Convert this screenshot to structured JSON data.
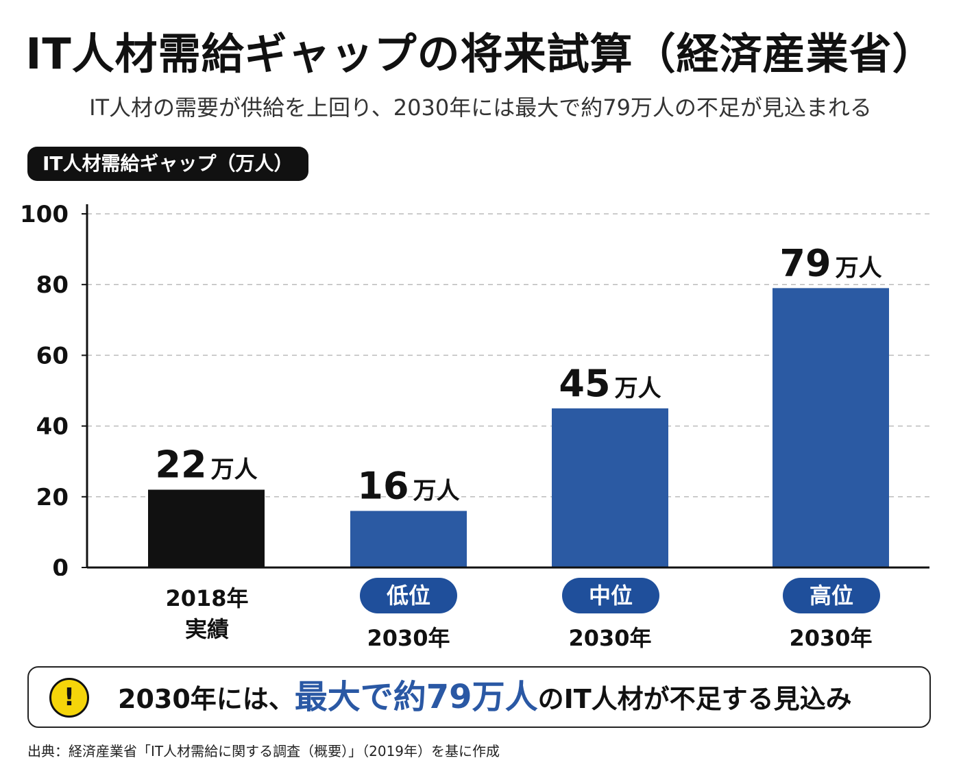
{
  "header": {
    "title": "IT人材需給ギャップの将来試算（経済産業省）",
    "subtitle": "IT人材の需要が供給を上回り、2030年には最大で約79万人の不足が見込まれる",
    "axis_pill": "IT人材需給ギャップ（万人）"
  },
  "colors": {
    "actual_bar": "#111111",
    "forecast_bar": "#2b5aa3",
    "bubble": "#1f4f9b",
    "highlight_text": "#2a58a4",
    "grid": "#bbbbbb",
    "warning": "#f5d50a"
  },
  "icons": {
    "warning": "exclamation-circle-icon"
  },
  "chart_data": {
    "type": "bar",
    "ylim": [
      0,
      100
    ],
    "yticks": [
      "0",
      "20",
      "40",
      "60",
      "80",
      "100"
    ],
    "grid": "horizontal-dashed",
    "unit_suffix": "万人",
    "values": [
      22,
      16,
      45,
      79
    ],
    "value_labels": [
      "22",
      "16",
      "45",
      "79"
    ],
    "categories": [
      {
        "badge": "",
        "line1": "2018年",
        "line2": "実績",
        "color": "#111111"
      },
      {
        "badge": "低位",
        "line1": "2030年",
        "line2": "",
        "color": "#2b5aa3"
      },
      {
        "badge": "中位",
        "line1": "2030年",
        "line2": "",
        "color": "#2b5aa3"
      },
      {
        "badge": "高位",
        "line1": "2030年",
        "line2": "",
        "color": "#2b5aa3"
      }
    ]
  },
  "callout": {
    "pre": "2030年には、",
    "highlight": "最大で約79万人",
    "post": "のIT人材が不足する見込み"
  },
  "source": "出典：経済産業省「IT人材需給に関する調査（概要）」（2019年）を基に作成"
}
